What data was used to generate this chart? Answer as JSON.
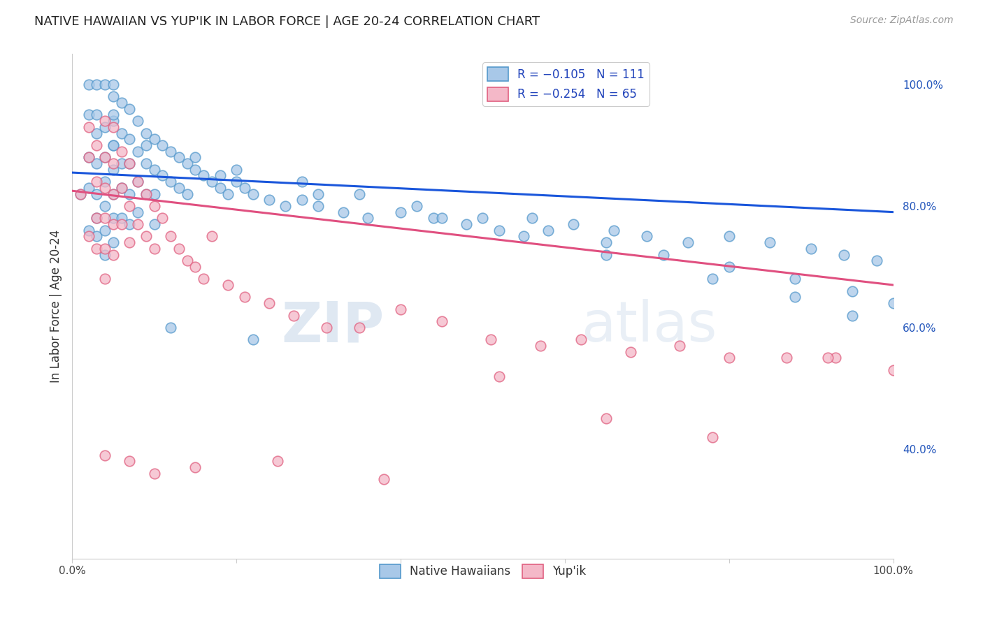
{
  "title": "NATIVE HAWAIIAN VS YUP'IK IN LABOR FORCE | AGE 20-24 CORRELATION CHART",
  "source": "Source: ZipAtlas.com",
  "ylabel": "In Labor Force | Age 20-24",
  "x_min": 0.0,
  "x_max": 1.0,
  "y_min": 0.22,
  "y_max": 1.05,
  "x_ticks": [
    0.0,
    0.2,
    0.4,
    0.6,
    0.8,
    1.0
  ],
  "x_tick_labels": [
    "0.0%",
    "",
    "",
    "",
    "",
    "100.0%"
  ],
  "y_tick_labels_right": [
    "40.0%",
    "60.0%",
    "80.0%",
    "100.0%"
  ],
  "y_tick_vals_right": [
    0.4,
    0.6,
    0.8,
    1.0
  ],
  "legend_r1": "R = −0.105",
  "legend_n1": "N = 111",
  "legend_r2": "R = −0.254",
  "legend_n2": "N = 65",
  "color_blue": "#a8c8e8",
  "color_pink": "#f4b8c8",
  "color_blue_edge": "#5599cc",
  "color_pink_edge": "#e06080",
  "color_blue_line": "#1a56db",
  "color_pink_line": "#e05080",
  "watermark": "ZIPatlas",
  "background_color": "#ffffff",
  "grid_color": "#dddddd",
  "title_color": "#222222",
  "source_color": "#999999",
  "right_label_color": "#2255bb",
  "nh_scatter_x": [
    0.01,
    0.02,
    0.02,
    0.02,
    0.02,
    0.02,
    0.03,
    0.03,
    0.03,
    0.03,
    0.03,
    0.03,
    0.03,
    0.04,
    0.04,
    0.04,
    0.04,
    0.04,
    0.04,
    0.04,
    0.05,
    0.05,
    0.05,
    0.05,
    0.05,
    0.05,
    0.05,
    0.05,
    0.05,
    0.05,
    0.06,
    0.06,
    0.06,
    0.06,
    0.06,
    0.07,
    0.07,
    0.07,
    0.07,
    0.07,
    0.08,
    0.08,
    0.08,
    0.08,
    0.09,
    0.09,
    0.09,
    0.1,
    0.1,
    0.1,
    0.1,
    0.11,
    0.11,
    0.12,
    0.12,
    0.13,
    0.13,
    0.14,
    0.14,
    0.15,
    0.16,
    0.17,
    0.18,
    0.19,
    0.2,
    0.21,
    0.22,
    0.24,
    0.26,
    0.28,
    0.3,
    0.33,
    0.36,
    0.4,
    0.44,
    0.48,
    0.52,
    0.56,
    0.61,
    0.66,
    0.7,
    0.75,
    0.8,
    0.85,
    0.9,
    0.94,
    0.98,
    0.15,
    0.2,
    0.28,
    0.35,
    0.42,
    0.5,
    0.58,
    0.65,
    0.72,
    0.8,
    0.88,
    0.95,
    1.0,
    0.09,
    0.18,
    0.3,
    0.45,
    0.55,
    0.65,
    0.78,
    0.88,
    0.95,
    0.12,
    0.22
  ],
  "nh_scatter_y": [
    0.82,
    0.88,
    0.83,
    0.95,
    1.0,
    0.76,
    0.92,
    0.87,
    0.82,
    0.78,
    0.75,
    1.0,
    0.95,
    0.93,
    0.88,
    0.84,
    0.8,
    0.76,
    0.72,
    1.0,
    0.98,
    0.94,
    0.9,
    0.86,
    0.82,
    0.78,
    0.74,
    1.0,
    0.95,
    0.9,
    0.97,
    0.92,
    0.87,
    0.83,
    0.78,
    0.96,
    0.91,
    0.87,
    0.82,
    0.77,
    0.94,
    0.89,
    0.84,
    0.79,
    0.92,
    0.87,
    0.82,
    0.91,
    0.86,
    0.82,
    0.77,
    0.9,
    0.85,
    0.89,
    0.84,
    0.88,
    0.83,
    0.87,
    0.82,
    0.86,
    0.85,
    0.84,
    0.83,
    0.82,
    0.84,
    0.83,
    0.82,
    0.81,
    0.8,
    0.81,
    0.8,
    0.79,
    0.78,
    0.79,
    0.78,
    0.77,
    0.76,
    0.78,
    0.77,
    0.76,
    0.75,
    0.74,
    0.75,
    0.74,
    0.73,
    0.72,
    0.71,
    0.88,
    0.86,
    0.84,
    0.82,
    0.8,
    0.78,
    0.76,
    0.74,
    0.72,
    0.7,
    0.68,
    0.66,
    0.64,
    0.9,
    0.85,
    0.82,
    0.78,
    0.75,
    0.72,
    0.68,
    0.65,
    0.62,
    0.6,
    0.58
  ],
  "yupik_scatter_x": [
    0.01,
    0.02,
    0.02,
    0.02,
    0.03,
    0.03,
    0.03,
    0.03,
    0.04,
    0.04,
    0.04,
    0.04,
    0.04,
    0.04,
    0.05,
    0.05,
    0.05,
    0.05,
    0.05,
    0.06,
    0.06,
    0.06,
    0.07,
    0.07,
    0.07,
    0.08,
    0.08,
    0.09,
    0.09,
    0.1,
    0.1,
    0.11,
    0.12,
    0.13,
    0.14,
    0.15,
    0.16,
    0.17,
    0.19,
    0.21,
    0.24,
    0.27,
    0.31,
    0.35,
    0.4,
    0.45,
    0.51,
    0.57,
    0.62,
    0.68,
    0.74,
    0.8,
    0.87,
    0.93,
    1.0,
    0.07,
    0.15,
    0.25,
    0.38,
    0.52,
    0.65,
    0.78,
    0.92,
    0.04,
    0.1
  ],
  "yupik_scatter_y": [
    0.82,
    0.88,
    0.75,
    0.93,
    0.9,
    0.84,
    0.78,
    0.73,
    0.94,
    0.88,
    0.83,
    0.78,
    0.73,
    0.68,
    0.93,
    0.87,
    0.82,
    0.77,
    0.72,
    0.89,
    0.83,
    0.77,
    0.87,
    0.8,
    0.74,
    0.84,
    0.77,
    0.82,
    0.75,
    0.8,
    0.73,
    0.78,
    0.75,
    0.73,
    0.71,
    0.7,
    0.68,
    0.75,
    0.67,
    0.65,
    0.64,
    0.62,
    0.6,
    0.6,
    0.63,
    0.61,
    0.58,
    0.57,
    0.58,
    0.56,
    0.57,
    0.55,
    0.55,
    0.55,
    0.53,
    0.38,
    0.37,
    0.38,
    0.35,
    0.52,
    0.45,
    0.42,
    0.55,
    0.39,
    0.36
  ],
  "nh_trend_y_start": 0.855,
  "nh_trend_y_end": 0.79,
  "yupik_trend_y_start": 0.825,
  "yupik_trend_y_end": 0.67
}
